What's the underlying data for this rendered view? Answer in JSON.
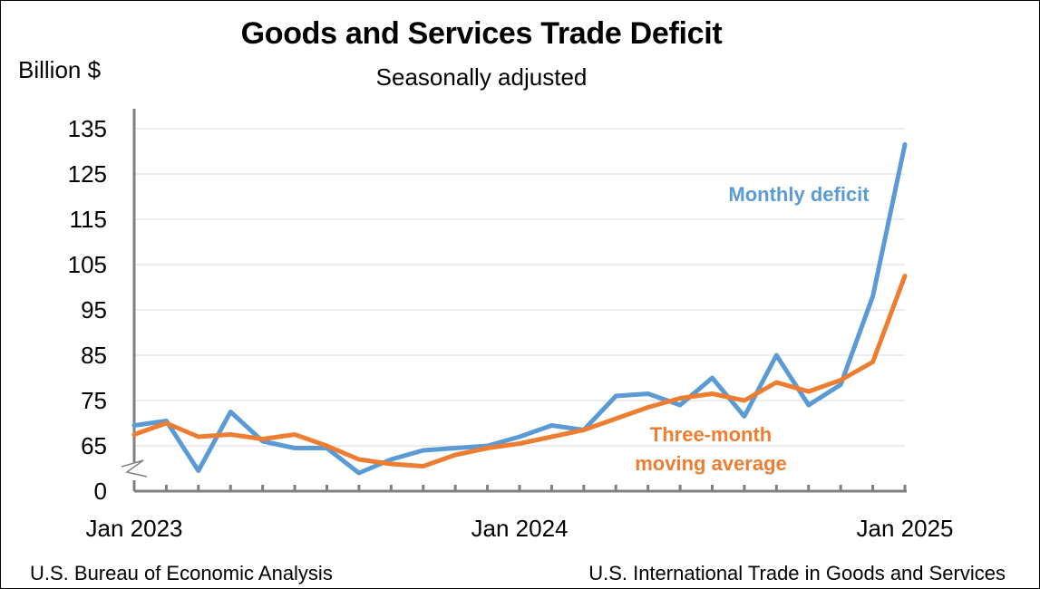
{
  "chart_data": {
    "type": "line",
    "title": "Goods and Services Trade Deficit",
    "subtitle": "Seasonally adjusted",
    "ylabel": "Billion $",
    "ylim": [
      0,
      135
    ],
    "axis_break": true,
    "y_ticks": [
      "135",
      "125",
      "115",
      "105",
      "95",
      "85",
      "75",
      "65",
      "0"
    ],
    "y_tick_values": [
      135,
      125,
      115,
      105,
      95,
      85,
      75,
      65,
      0
    ],
    "x_tick_labels": [
      {
        "index": 0,
        "label": "Jan 2023"
      },
      {
        "index": 12,
        "label": "Jan 2024"
      },
      {
        "index": 24,
        "label": "Jan 2025"
      }
    ],
    "months": 25,
    "series": [
      {
        "name": "Monthly deficit",
        "color": "#5b9bd5",
        "values": [
          69.5,
          70.5,
          59.5,
          72.5,
          66,
          64.5,
          64.5,
          59,
          62,
          64,
          64.5,
          65,
          67,
          69.5,
          68.5,
          76,
          76.5,
          74,
          80,
          71.5,
          85,
          74,
          78.5,
          98,
          131.5
        ]
      },
      {
        "name": "Three-month moving average",
        "color": "#ed7d31",
        "values": [
          67.5,
          70,
          67,
          67.5,
          66.5,
          67.5,
          65,
          62,
          61,
          60.5,
          63,
          64.5,
          65.5,
          67,
          68.5,
          71,
          73.5,
          75.5,
          76.5,
          75,
          79,
          77,
          79.5,
          83.5,
          102.5
        ]
      }
    ],
    "series_labels": {
      "monthly": "Monthly deficit",
      "average_line1": "Three-month",
      "average_line2": "moving average"
    }
  },
  "footer": {
    "source_left": "U.S. Bureau of Economic Analysis",
    "source_right": "U.S. International Trade in Goods and Services"
  }
}
